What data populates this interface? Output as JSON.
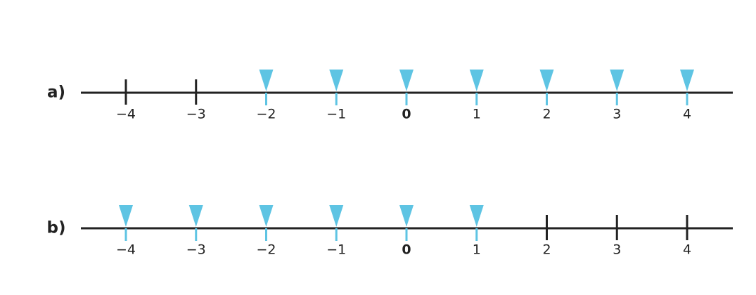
{
  "lines": [
    {
      "label": "a)",
      "ticks": [
        {
          "value": -4,
          "label": "−4",
          "marked": false
        },
        {
          "value": -3,
          "label": "−3",
          "marked": false
        },
        {
          "value": -2,
          "label": "−2",
          "marked": true
        },
        {
          "value": -1,
          "label": "−1",
          "marked": true
        },
        {
          "value": 0,
          "label": "0",
          "marked": true
        },
        {
          "value": 1,
          "label": "1",
          "marked": true
        },
        {
          "value": 2,
          "label": "2",
          "marked": true
        },
        {
          "value": 3,
          "label": "3",
          "marked": true
        },
        {
          "value": 4,
          "label": "4",
          "marked": true
        }
      ]
    },
    {
      "label": "b)",
      "ticks": [
        {
          "value": -4,
          "label": "−4",
          "marked": true
        },
        {
          "value": -3,
          "label": "−3",
          "marked": true
        },
        {
          "value": -2,
          "label": "−2",
          "marked": true
        },
        {
          "value": -1,
          "label": "−1",
          "marked": true
        },
        {
          "value": 0,
          "label": "0",
          "marked": true
        },
        {
          "value": 1,
          "label": "1",
          "marked": true
        },
        {
          "value": 2,
          "label": "2",
          "marked": false
        },
        {
          "value": 3,
          "label": "3",
          "marked": false
        },
        {
          "value": 4,
          "label": "4",
          "marked": false
        }
      ]
    }
  ]
}
